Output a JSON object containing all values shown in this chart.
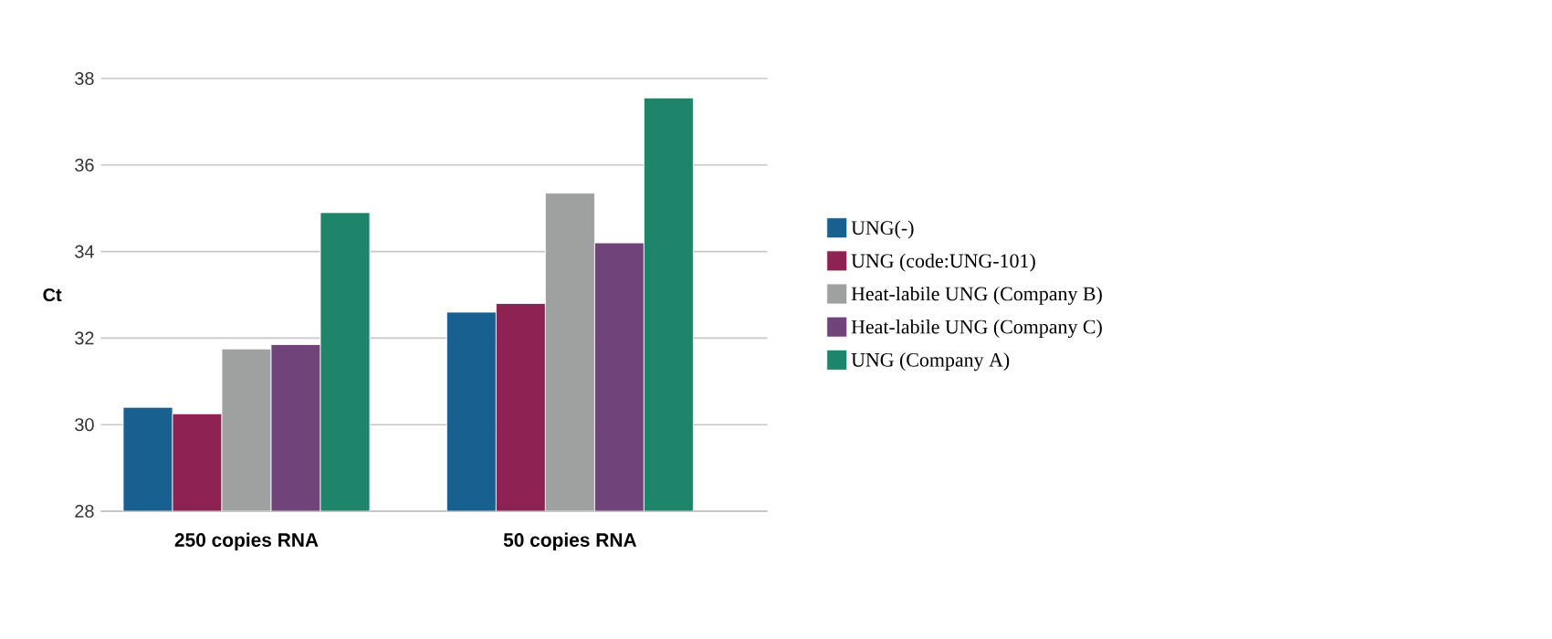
{
  "chart_data": {
    "type": "bar",
    "ylabel": "Ct",
    "categories": [
      "250 copies RNA",
      "50 copies RNA"
    ],
    "series": [
      {
        "name": "UNG(-)",
        "color": "#17608f",
        "values": [
          30.4,
          32.6
        ]
      },
      {
        "name": "UNG (code:UNG-101)",
        "color": "#8e2353",
        "values": [
          30.25,
          32.8
        ]
      },
      {
        "name": "Heat-labile UNG (Company B)",
        "color": "#9fa0a0",
        "values": [
          31.75,
          35.35
        ]
      },
      {
        "name": "Heat-labile UNG (Company C)",
        "color": "#70437a",
        "values": [
          31.85,
          34.2
        ]
      },
      {
        "name": "UNG (Company A)",
        "color": "#1e846a",
        "values": [
          34.9,
          37.55
        ]
      }
    ],
    "ylim": [
      28,
      38
    ],
    "yticks": [
      28,
      30,
      32,
      34,
      36,
      38
    ],
    "grid": "y",
    "legend": "right"
  }
}
